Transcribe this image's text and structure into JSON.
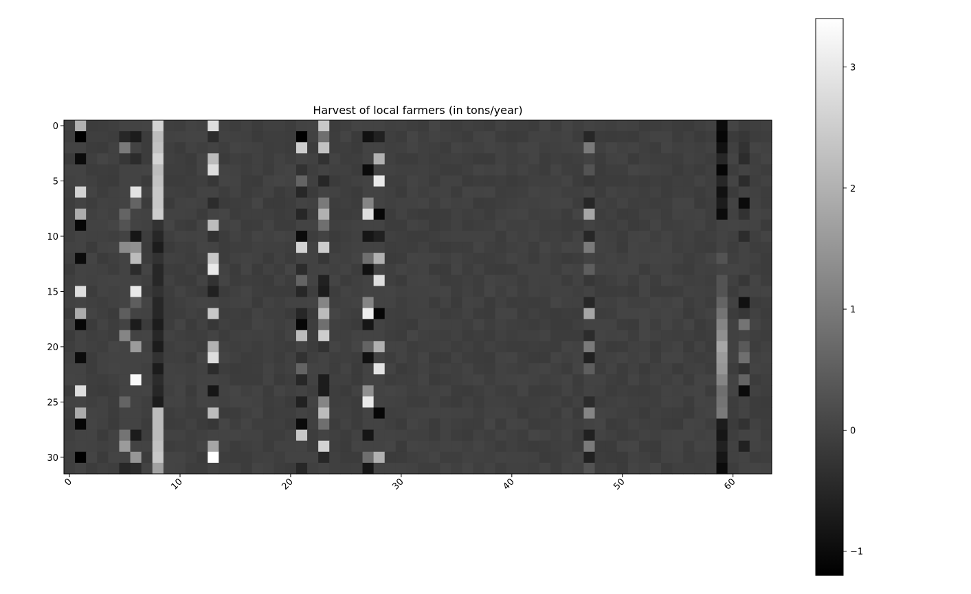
{
  "chart_data": {
    "type": "heatmap",
    "title": "Harvest of local farmers (in tons/year)",
    "xlabel": "",
    "ylabel": "",
    "colormap": "gray",
    "n_rows": 32,
    "n_cols": 64,
    "x_ticks": [
      0,
      10,
      20,
      30,
      40,
      50,
      60
    ],
    "y_ticks": [
      0,
      5,
      10,
      15,
      20,
      25,
      30
    ],
    "color_range": [
      -1.2,
      3.4
    ],
    "colorbar_ticks": [
      -1,
      0,
      1,
      2,
      3
    ],
    "colorbar_tick_labels": [
      "−1",
      "0",
      "1",
      "2",
      "3"
    ],
    "background_level": -0.05,
    "column_value_patterns": [
      {
        "col": 1,
        "values": [
          2.0,
          -1.2,
          0.0,
          -1.0,
          0.0,
          0.0,
          2.6,
          0.0,
          1.9,
          -1.1,
          0.0,
          0.0,
          -1.0,
          0.0,
          0.0,
          2.8,
          0.0,
          1.9,
          -1.1,
          0.0,
          0.0,
          -1.0,
          0.0,
          0.0,
          2.8,
          0.0,
          1.9,
          -1.1,
          0.0,
          0.0,
          -1.2,
          0.0
        ]
      },
      {
        "col": 5,
        "values": [
          0.0,
          -0.5,
          1.0,
          -0.2,
          0.0,
          0.0,
          0.0,
          0.0,
          0.6,
          0.3,
          0.0,
          1.3,
          0.0,
          0.0,
          0.0,
          0.0,
          0.0,
          0.5,
          0.0,
          1.2,
          0.0,
          0.0,
          0.0,
          0.0,
          0.0,
          0.6,
          0.0,
          0.0,
          0.9,
          1.6,
          0.0,
          -0.5
        ]
      },
      {
        "col": 6,
        "values": [
          0.0,
          -0.7,
          0.0,
          -0.4,
          0.0,
          0.0,
          2.9,
          0.6,
          0.0,
          0.0,
          -0.8,
          1.4,
          2.2,
          -0.4,
          0.0,
          3.0,
          0.5,
          0.0,
          -0.7,
          0.0,
          1.6,
          0.0,
          0.0,
          3.3,
          0.0,
          0.0,
          0.0,
          0.0,
          -0.7,
          0.0,
          1.5,
          -0.4
        ]
      },
      {
        "col": 8,
        "values": [
          2.6,
          2.2,
          2.3,
          2.6,
          2.2,
          2.3,
          2.4,
          2.4,
          2.5,
          -0.3,
          -0.5,
          -0.7,
          -0.3,
          -0.5,
          -0.5,
          -0.3,
          -0.5,
          -0.5,
          -0.7,
          -0.5,
          -0.7,
          -0.3,
          -0.7,
          -0.4,
          -0.5,
          -0.7,
          2.2,
          2.2,
          2.2,
          2.3,
          2.4,
          1.7
        ]
      },
      {
        "col": 13,
        "values": [
          2.8,
          -0.4,
          0.0,
          2.2,
          2.8,
          -0.2,
          0.0,
          -0.4,
          0.0,
          2.2,
          -0.3,
          0.0,
          2.4,
          3.0,
          -0.3,
          -0.6,
          0.0,
          2.4,
          -0.2,
          0.0,
          2.0,
          2.8,
          -0.4,
          0.0,
          -0.8,
          0.0,
          2.2,
          -0.2,
          0.0,
          1.8,
          3.4,
          0.0
        ]
      },
      {
        "col": 21,
        "values": [
          0.0,
          -1.2,
          2.5,
          0.0,
          -0.3,
          0.6,
          -0.5,
          0.0,
          -0.5,
          0.0,
          -1.0,
          2.6,
          0.0,
          -0.4,
          0.6,
          -0.5,
          0.0,
          -0.5,
          -1.1,
          2.2,
          0.0,
          -0.3,
          0.6,
          -0.5,
          0.0,
          -0.6,
          0.0,
          -1.0,
          2.4,
          0.0,
          0.0,
          -0.5
        ]
      },
      {
        "col": 23,
        "values": [
          2.4,
          0.8,
          2.3,
          -0.3,
          0.0,
          -0.5,
          0.0,
          1.0,
          2.0,
          0.8,
          0.0,
          2.5,
          -0.2,
          0.0,
          -0.6,
          -0.7,
          1.2,
          2.2,
          0.8,
          2.5,
          -0.3,
          0.0,
          0.0,
          -0.7,
          -0.7,
          1.2,
          2.2,
          0.8,
          0.0,
          2.6,
          -0.5,
          0.0
        ]
      },
      {
        "col": 27,
        "values": [
          0.0,
          -0.9,
          0.0,
          0.0,
          -1.0,
          0.0,
          0.0,
          1.2,
          2.8,
          0.0,
          -0.8,
          0.0,
          0.8,
          -0.9,
          0.0,
          0.0,
          1.2,
          3.1,
          -0.8,
          0.0,
          0.6,
          -0.9,
          0.0,
          0.0,
          1.4,
          3.0,
          0.0,
          0.0,
          -0.8,
          0.0,
          0.8,
          -0.8
        ]
      },
      {
        "col": 28,
        "values": [
          0.0,
          -0.6,
          0.0,
          2.0,
          0.0,
          3.0,
          0.0,
          0.0,
          -1.1,
          0.0,
          -0.6,
          0.0,
          2.0,
          0.0,
          2.8,
          0.0,
          0.0,
          -1.1,
          0.0,
          0.0,
          2.0,
          0.0,
          2.9,
          0.0,
          0.0,
          0.0,
          -1.1,
          0.0,
          0.0,
          0.0,
          2.0,
          0.0
        ]
      },
      {
        "col": 47,
        "values": [
          0.0,
          -0.5,
          1.0,
          0.0,
          0.3,
          -0.2,
          0.0,
          -0.5,
          1.8,
          0.0,
          -0.5,
          1.0,
          0.0,
          0.5,
          -0.2,
          0.0,
          -0.5,
          1.8,
          0.0,
          -0.4,
          1.0,
          -0.6,
          0.5,
          0.0,
          0.0,
          -0.4,
          1.2,
          0.0,
          -0.6,
          1.0,
          -0.6,
          0.3
        ]
      },
      {
        "col": 59,
        "values": [
          -1.0,
          -1.1,
          -0.9,
          -0.5,
          -1.1,
          -0.5,
          -0.9,
          -0.7,
          -1.0,
          0.0,
          0.0,
          0.0,
          0.3,
          0.0,
          0.3,
          0.3,
          0.6,
          0.9,
          1.2,
          1.4,
          1.8,
          1.6,
          1.5,
          1.2,
          0.8,
          0.9,
          1.0,
          -0.7,
          -0.8,
          -0.6,
          -0.8,
          -1.0
        ]
      },
      {
        "col": 61,
        "values": [
          -0.1,
          -0.2,
          -0.3,
          -0.4,
          0.0,
          -0.4,
          0.0,
          -1.0,
          -0.3,
          0.0,
          -0.4,
          0.0,
          0.0,
          0.0,
          -0.2,
          0.0,
          -0.9,
          -0.2,
          0.9,
          0.0,
          0.4,
          0.8,
          -0.3,
          0.6,
          -1.0,
          0.0,
          0.0,
          -0.3,
          0.0,
          -0.6,
          0.0,
          0.0
        ]
      }
    ]
  }
}
